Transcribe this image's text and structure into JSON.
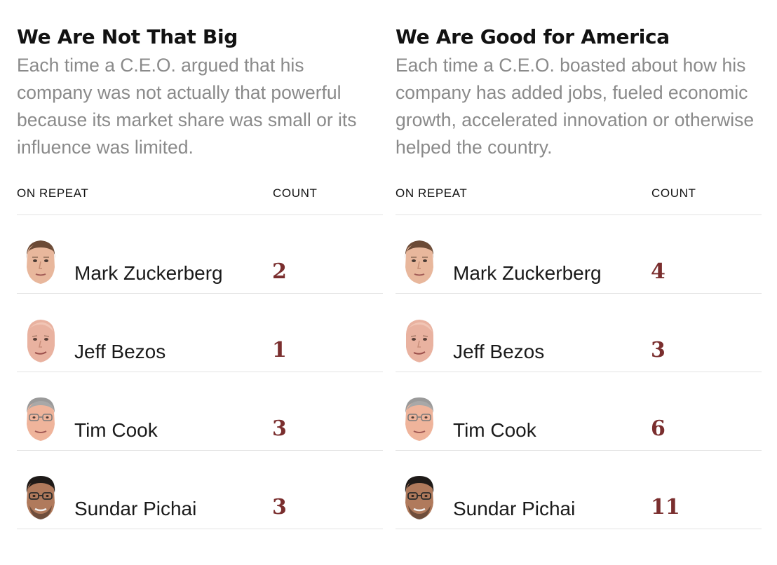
{
  "columns": {
    "name_header": "ON REPEAT",
    "count_header": "COUNT"
  },
  "colors": {
    "count_text": "#7a2e2e",
    "description_text": "#8a8a8a",
    "divider": "#e2e2e2"
  },
  "panels": [
    {
      "title": "We Are Not That Big",
      "description": "Each time a C.E.O. argued that his company was not actually that powerful because its market share was small or its influence was limited.",
      "rows": [
        {
          "name": "Mark Zuckerberg",
          "count": "2",
          "avatar": "mark-zuckerberg-avatar"
        },
        {
          "name": "Jeff Bezos",
          "count": "1",
          "avatar": "jeff-bezos-avatar"
        },
        {
          "name": "Tim Cook",
          "count": "3",
          "avatar": "tim-cook-avatar"
        },
        {
          "name": "Sundar Pichai",
          "count": "3",
          "avatar": "sundar-pichai-avatar"
        }
      ]
    },
    {
      "title": "We Are Good for America",
      "description": "Each time a C.E.O. boasted about how his company has added jobs, fueled economic growth, accelerated innovation or otherwise helped the country.",
      "rows": [
        {
          "name": "Mark Zuckerberg",
          "count": "4",
          "avatar": "mark-zuckerberg-avatar"
        },
        {
          "name": "Jeff Bezos",
          "count": "3",
          "avatar": "jeff-bezos-avatar"
        },
        {
          "name": "Tim Cook",
          "count": "6",
          "avatar": "tim-cook-avatar"
        },
        {
          "name": "Sundar Pichai",
          "count": "11",
          "avatar": "sundar-pichai-avatar"
        }
      ]
    }
  ]
}
